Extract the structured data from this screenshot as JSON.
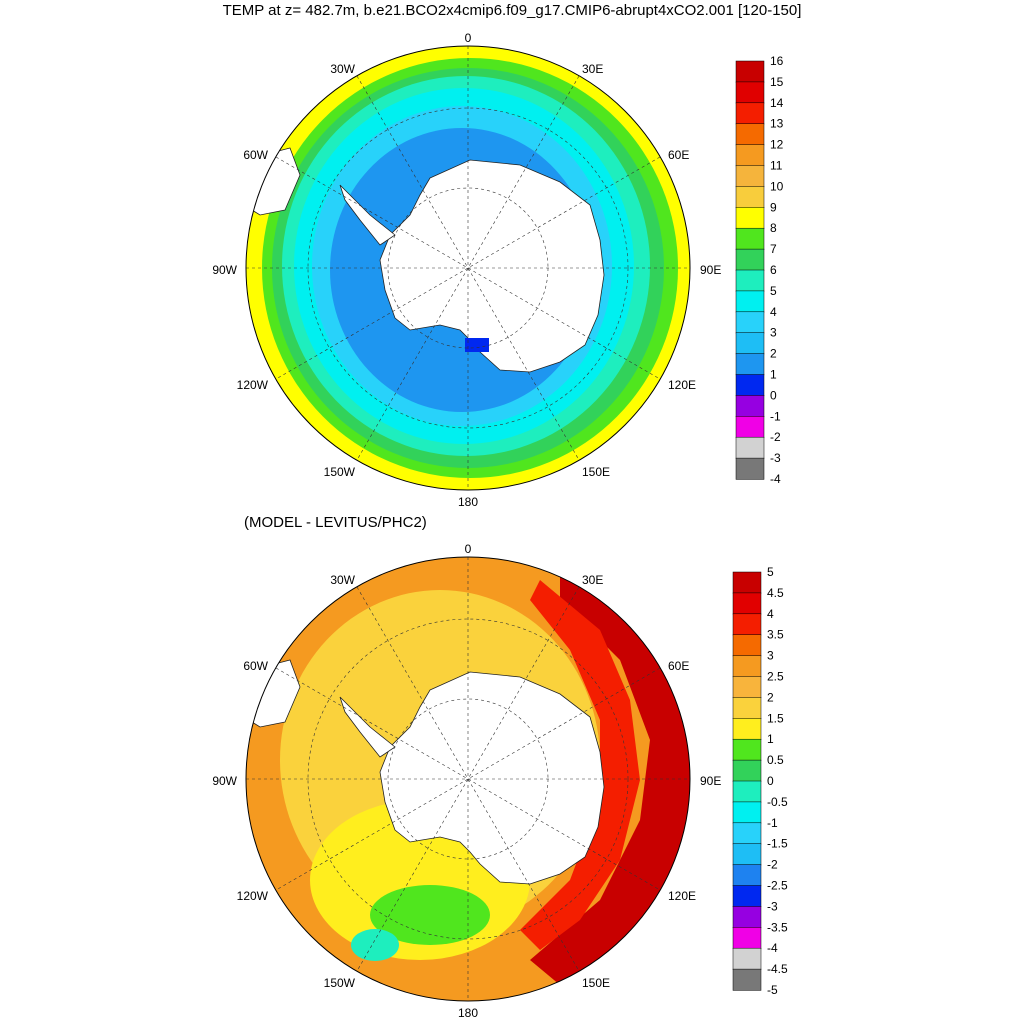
{
  "title": "TEMP at z= 482.7m, b.e21.BCO2x4cmip6.f09_g17.CMIP6-abrupt4xCO2.001 [120-150]",
  "subtitle": "(MODEL - LEVITUS/PHC2)",
  "panels": [
    {
      "name": "temperature",
      "longitude_labels": [
        "0",
        "30E",
        "60E",
        "90E",
        "120E",
        "150E",
        "180",
        "150W",
        "120W",
        "90W",
        "60W",
        "30W"
      ],
      "colorbar": {
        "labels": [
          "16",
          "15",
          "14",
          "13",
          "12",
          "11",
          "10",
          "9",
          "8",
          "7",
          "6",
          "5",
          "4",
          "3",
          "2",
          "1",
          "0",
          "-1",
          "-2",
          "-3",
          "-4"
        ],
        "colors": [
          "#c80000",
          "#e00000",
          "#f41e00",
          "#f56a00",
          "#f59a20",
          "#f5b43c",
          "#f8cd3c",
          "#ffff00",
          "#50e61e",
          "#32d25a",
          "#1eeebe",
          "#00f0f0",
          "#28d2fa",
          "#1ebef5",
          "#1e96f0",
          "#0028f0",
          "#9600e1",
          "#f000e6",
          "#d2d2d2",
          "#787878"
        ]
      }
    },
    {
      "name": "difference",
      "longitude_labels": [
        "0",
        "30E",
        "60E",
        "90E",
        "120E",
        "150E",
        "180",
        "150W",
        "120W",
        "90W",
        "60W",
        "30W"
      ],
      "colorbar": {
        "labels": [
          "5",
          "4.5",
          "4",
          "3.5",
          "3",
          "2.5",
          "2",
          "1.5",
          "1",
          "0.5",
          "0",
          "-0.5",
          "-1",
          "-1.5",
          "-2",
          "-2.5",
          "-3",
          "-3.5",
          "-4",
          "-4.5",
          "-5"
        ],
        "colors": [
          "#c80000",
          "#e10000",
          "#f41e00",
          "#f56a00",
          "#f59a20",
          "#f8b43c",
          "#fad23c",
          "#ffee1e",
          "#50e61e",
          "#32d25a",
          "#1eeebe",
          "#00f0f0",
          "#28d2fa",
          "#1ebef5",
          "#1e82f0",
          "#0028f0",
          "#9600e1",
          "#f000e6",
          "#d2d2d2",
          "#787878"
        ]
      }
    }
  ]
}
